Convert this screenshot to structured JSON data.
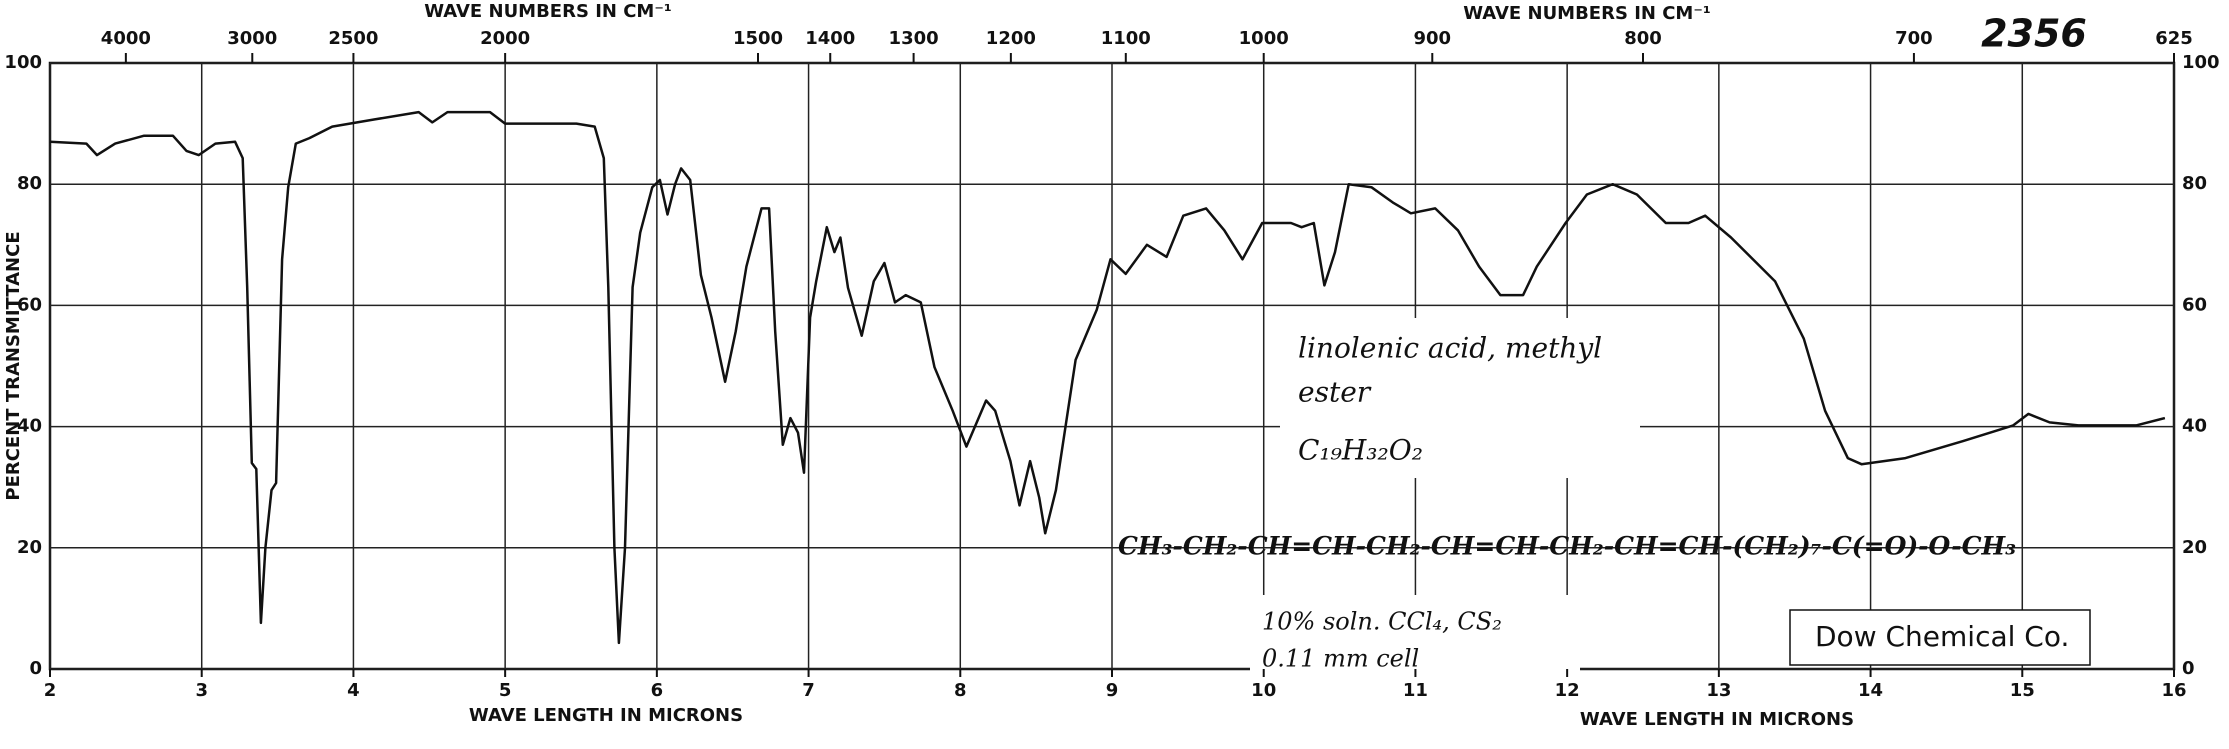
{
  "chart_data": {
    "type": "line",
    "x_label": "WAVE LENGTH IN MICRONS",
    "x2_label": "WAVE NUMBERS IN CM⁻¹",
    "y_label": "PERCENT TRANSMITTANCE",
    "spectrum_number": "2356",
    "annotations": [
      "linolenic acid, methyl",
      "ester",
      "C₁₉H₃₂O₂",
      "CH₃-CH₂-CH=CH-CH₂-CH=CH-CH₂-CH=CH-(CH₂)₇-C(=O)-O-CH₃",
      "10% soln. CCl₄, CS₂",
      "0.11 mm cell",
      "Dow Chemical Co."
    ],
    "color": "#111111",
    "grid": true,
    "xlim": [
      2,
      16
    ],
    "ylim": [
      0,
      100
    ],
    "xticks": [
      2,
      3,
      4,
      5,
      6,
      7,
      8,
      9,
      10,
      11,
      12,
      13,
      14,
      15,
      16
    ],
    "yticks": [
      0,
      20,
      40,
      60,
      80,
      100
    ],
    "x2ticks": [
      4000,
      3000,
      2500,
      2000,
      1500,
      1400,
      1300,
      1200,
      1100,
      1000,
      900,
      800,
      700,
      625
    ],
    "x": [
      2.0,
      2.24,
      2.31,
      2.43,
      2.62,
      2.81,
      2.9,
      2.98,
      3.09,
      3.22,
      3.27,
      3.3,
      3.33,
      3.36,
      3.39,
      3.42,
      3.46,
      3.49,
      3.53,
      3.57,
      3.62,
      3.71,
      3.86,
      4.14,
      4.43,
      4.52,
      4.62,
      4.9,
      5.0,
      5.28,
      5.47,
      5.59,
      5.65,
      5.68,
      5.72,
      5.75,
      5.79,
      5.84,
      5.89,
      5.97,
      6.02,
      6.07,
      6.12,
      6.16,
      6.22,
      6.29,
      6.36,
      6.45,
      6.52,
      6.59,
      6.69,
      6.74,
      6.78,
      6.83,
      6.88,
      6.93,
      6.97,
      7.01,
      7.05,
      7.12,
      7.17,
      7.21,
      7.26,
      7.35,
      7.43,
      7.5,
      7.57,
      7.64,
      7.74,
      7.83,
      7.95,
      8.04,
      8.17,
      8.23,
      8.33,
      8.39,
      8.46,
      8.52,
      8.56,
      8.63,
      8.76,
      8.9,
      8.99,
      9.09,
      9.23,
      9.36,
      9.47,
      9.62,
      9.74,
      9.86,
      9.99,
      10.18,
      10.25,
      10.33,
      10.4,
      10.47,
      10.56,
      10.71,
      10.85,
      10.97,
      11.13,
      11.28,
      11.42,
      11.56,
      11.71,
      11.8,
      11.99,
      12.13,
      12.3,
      12.46,
      12.65,
      12.8,
      12.91,
      13.08,
      13.37,
      13.56,
      13.7,
      13.85,
      13.94,
      14.23,
      14.61,
      14.94,
      15.04,
      15.18,
      15.37,
      15.75,
      15.94
    ],
    "values": [
      87,
      86.7,
      84.8,
      86.7,
      88,
      88,
      85.5,
      84.8,
      86.7,
      87,
      84.3,
      63,
      34,
      33,
      7.6,
      20,
      29.5,
      30.7,
      67.6,
      79.5,
      86.7,
      87.6,
      89.5,
      90.7,
      91.9,
      90.2,
      91.9,
      91.9,
      90,
      90,
      90,
      89.5,
      84.3,
      63,
      20,
      4.3,
      20,
      63,
      72,
      79.5,
      80.7,
      75,
      80,
      82.6,
      80.7,
      65,
      58,
      47.4,
      55.7,
      66.4,
      76,
      76,
      55.7,
      37,
      41.4,
      39,
      32.4,
      58,
      64,
      72.9,
      68.8,
      71.2,
      62.9,
      55,
      64,
      67,
      60.5,
      61.7,
      60.5,
      49.8,
      42.6,
      36.7,
      44.3,
      42.6,
      34.3,
      27,
      34.3,
      28.3,
      22.4,
      29.5,
      51,
      59.3,
      67.6,
      65.2,
      70,
      68,
      74.8,
      76,
      72.4,
      67.6,
      73.6,
      73.6,
      72.9,
      73.6,
      63.3,
      68.8,
      80,
      79.5,
      77,
      75.2,
      76,
      72.4,
      66.4,
      61.7,
      61.7,
      66.4,
      73.6,
      78.3,
      80,
      78.3,
      73.6,
      73.6,
      74.8,
      71.2,
      64,
      54.5,
      42.6,
      34.8,
      33.8,
      34.8,
      37.6,
      40.2,
      42.1,
      40.7,
      40.2,
      40.2,
      41.4
    ]
  }
}
